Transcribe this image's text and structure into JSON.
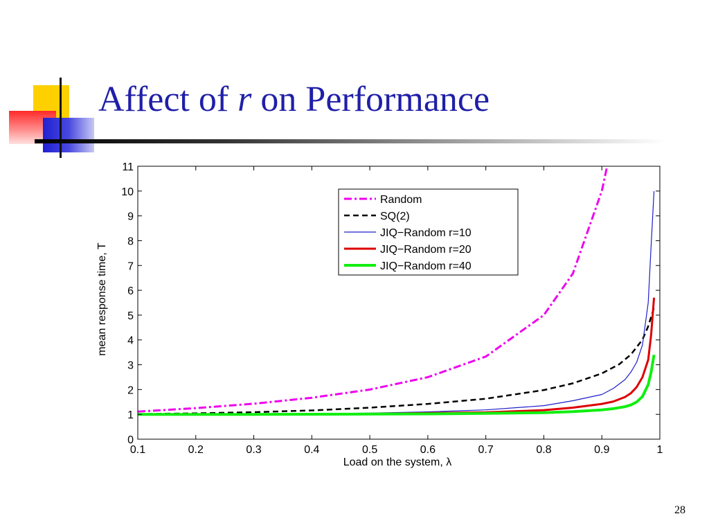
{
  "slide": {
    "title_before": "Affect of",
    "title_var": "r",
    "title_after": "on Performance",
    "page_number": "28"
  },
  "colors": {
    "title": "#1f1fa8",
    "deco_yellow": "#ffd000",
    "deco_red": "#ff3030",
    "deco_blue": "#2828d8"
  },
  "chart_data": {
    "type": "line",
    "xlabel": "Load on the system, λ",
    "ylabel": "mean response time, T",
    "xlim": [
      0.1,
      1
    ],
    "ylim": [
      0,
      11
    ],
    "x_ticks": [
      "0.1",
      "0.2",
      "0.3",
      "0.4",
      "0.5",
      "0.6",
      "0.7",
      "0.8",
      "0.9",
      "1"
    ],
    "y_ticks": [
      "0",
      "1",
      "2",
      "3",
      "4",
      "5",
      "6",
      "7",
      "8",
      "9",
      "10",
      "11"
    ],
    "grid": false,
    "legend_position": "top-right",
    "series": [
      {
        "name": "Random",
        "color": "#ee00ee",
        "dash": "dashdot",
        "width": 3,
        "x": [
          0.1,
          0.2,
          0.3,
          0.4,
          0.5,
          0.6,
          0.7,
          0.8,
          0.85,
          0.9,
          0.91
        ],
        "y": [
          1.11,
          1.25,
          1.43,
          1.67,
          2.0,
          2.5,
          3.33,
          5.0,
          6.67,
          10.0,
          11.1
        ]
      },
      {
        "name": "SQ(2)",
        "color": "#000000",
        "dash": "dashed",
        "width": 2.5,
        "x": [
          0.1,
          0.2,
          0.3,
          0.4,
          0.5,
          0.6,
          0.7,
          0.8,
          0.85,
          0.9,
          0.93,
          0.95,
          0.97,
          0.98,
          0.99
        ],
        "y": [
          1.01,
          1.04,
          1.09,
          1.16,
          1.27,
          1.42,
          1.63,
          1.98,
          2.25,
          2.65,
          3.02,
          3.41,
          4.01,
          4.55,
          5.3
        ]
      },
      {
        "name": "JIQ−Random r=10",
        "color": "#1c1ccc",
        "dash": "solid",
        "width": 1.2,
        "x": [
          0.1,
          0.3,
          0.5,
          0.6,
          0.7,
          0.8,
          0.85,
          0.9,
          0.92,
          0.94,
          0.95,
          0.96,
          0.97,
          0.98,
          0.985,
          0.99
        ],
        "y": [
          1.0,
          1.01,
          1.05,
          1.1,
          1.18,
          1.35,
          1.55,
          1.8,
          2.05,
          2.4,
          2.7,
          3.1,
          3.8,
          5.5,
          7.8,
          10.0
        ]
      },
      {
        "name": "JIQ−Random r=20",
        "color": "#dd0000",
        "dash": "solid",
        "width": 3,
        "x": [
          0.1,
          0.3,
          0.5,
          0.6,
          0.7,
          0.8,
          0.85,
          0.9,
          0.92,
          0.94,
          0.95,
          0.96,
          0.97,
          0.98,
          0.985,
          0.99
        ],
        "y": [
          1.0,
          1.0,
          1.02,
          1.05,
          1.08,
          1.17,
          1.27,
          1.42,
          1.52,
          1.7,
          1.85,
          2.1,
          2.5,
          3.2,
          4.2,
          5.7
        ]
      },
      {
        "name": "JIQ−Random r=40",
        "color": "#11ee11",
        "dash": "solid",
        "width": 4,
        "x": [
          0.1,
          0.3,
          0.5,
          0.6,
          0.7,
          0.8,
          0.85,
          0.9,
          0.92,
          0.94,
          0.95,
          0.96,
          0.97,
          0.98,
          0.985,
          0.99
        ],
        "y": [
          1.0,
          1.0,
          1.01,
          1.02,
          1.04,
          1.07,
          1.11,
          1.18,
          1.23,
          1.31,
          1.38,
          1.5,
          1.72,
          2.2,
          2.7,
          3.4
        ]
      }
    ]
  }
}
